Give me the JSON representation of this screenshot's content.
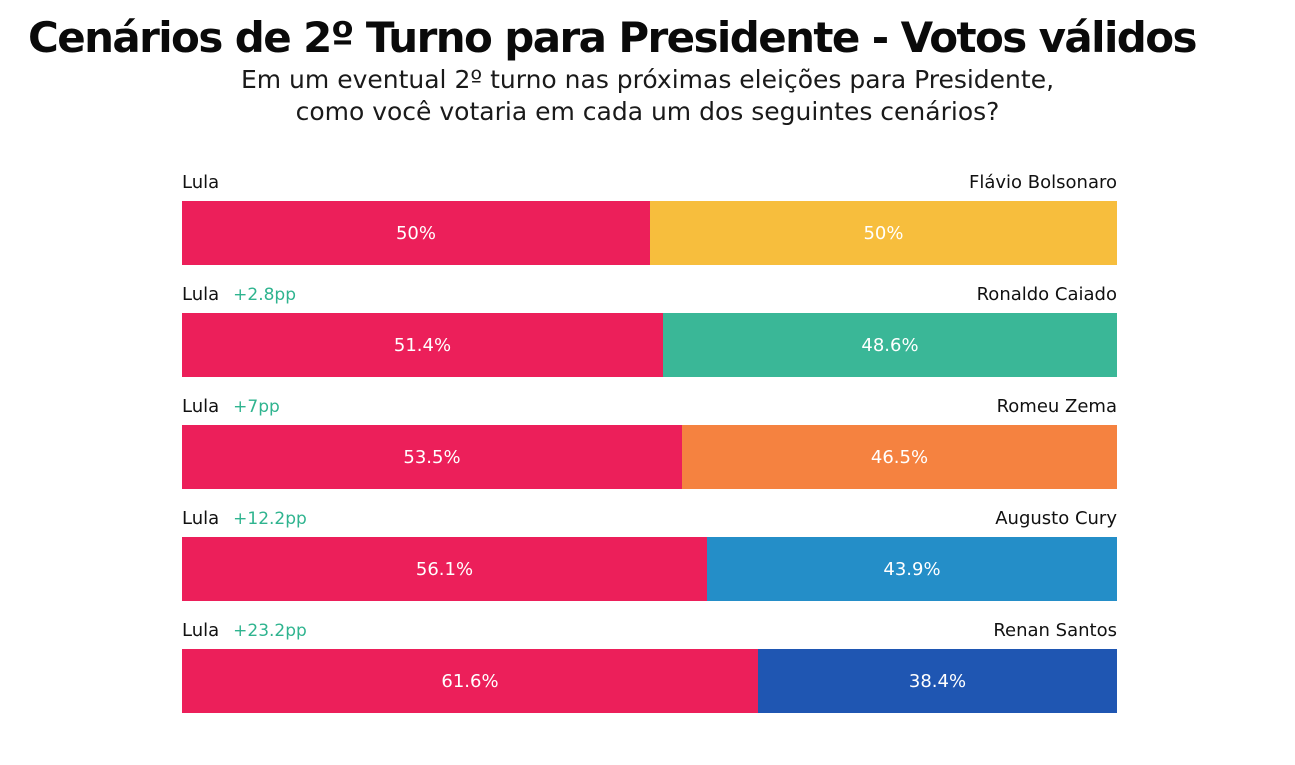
{
  "title": "Cenários de 2º Turno para Presidente - Votos válidos",
  "subtitle": [
    "Em um eventual 2º turno nas próximas eleições para Presidente,",
    "como você votaria em cada um dos seguintes cenários?"
  ],
  "colors": {
    "lula": "#ec1f5a",
    "lead_text": "#2fb48f"
  },
  "chart_data": {
    "type": "bar",
    "orientation": "horizontal",
    "stacked": true,
    "value_unit": "%",
    "xlim": [
      0,
      100
    ],
    "series": [
      {
        "name": "Lula",
        "values": [
          50,
          51.4,
          53.5,
          56.1,
          61.6
        ],
        "color": "#ec1f5a"
      },
      {
        "name": "",
        "values": [
          50,
          48.6,
          46.5,
          43.9,
          38.4
        ]
      }
    ],
    "scenarios": [
      {
        "left_name": "Lula",
        "lead": "",
        "right_name": "Flávio Bolsonaro",
        "left_value": 50,
        "right_value": 50,
        "left_label": "50%",
        "right_label": "50%",
        "right_color": "#f7be3d"
      },
      {
        "left_name": "Lula",
        "lead": "+2.8pp",
        "right_name": "Ronaldo Caiado",
        "left_value": 51.4,
        "right_value": 48.6,
        "left_label": "51.4%",
        "right_label": "48.6%",
        "right_color": "#3ab797"
      },
      {
        "left_name": "Lula",
        "lead": "+7pp",
        "right_name": "Romeu Zema",
        "left_value": 53.5,
        "right_value": 46.5,
        "left_label": "53.5%",
        "right_label": "46.5%",
        "right_color": "#f58240"
      },
      {
        "left_name": "Lula",
        "lead": "+12.2pp",
        "right_name": "Augusto Cury",
        "left_value": 56.1,
        "right_value": 43.9,
        "left_label": "56.1%",
        "right_label": "43.9%",
        "right_color": "#248ec8"
      },
      {
        "left_name": "Lula",
        "lead": "+23.2pp",
        "right_name": "Renan Santos",
        "left_value": 61.6,
        "right_value": 38.4,
        "left_label": "61.6%",
        "right_label": "38.4%",
        "right_color": "#1f56b2"
      }
    ]
  }
}
